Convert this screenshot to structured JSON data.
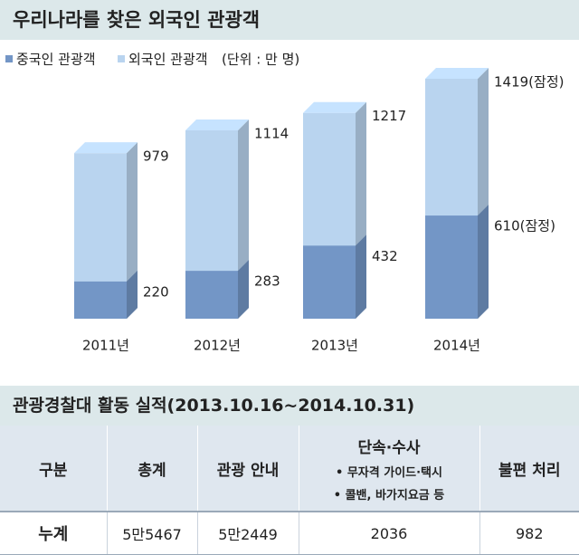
{
  "chart_data": {
    "type": "overlay-bar3d",
    "title": "우리나라를 찾은 외국인 관광객",
    "unit": "(단위 : 만 명)",
    "categories": [
      "2011년",
      "2012년",
      "2013년",
      "2014년"
    ],
    "series": [
      {
        "name": "외국인 관광객",
        "color": "#b9d4ef",
        "values": [
          979,
          1114,
          1217,
          1419
        ],
        "value_labels": [
          "979",
          "1114",
          "1217",
          "1419(잠정)"
        ]
      },
      {
        "name": "중국인 관광객",
        "color": "#7396c6",
        "values": [
          220,
          283,
          432,
          610
        ],
        "value_labels": [
          "220",
          "283",
          "432",
          "610(잠정)"
        ]
      }
    ]
  },
  "table": {
    "title": "관광경찰대 활동 실적(2013.10.16~2014.10.31)",
    "header": [
      "구분",
      "총계",
      "관광 안내",
      "단속·수사",
      "불편 처리"
    ],
    "header_notes": [
      "• 무자격 가이드·택시",
      "• 콜밴, 바가지요금 등"
    ],
    "rows": [
      [
        "누계",
        "5만5467",
        "5만2449",
        "2036",
        "982"
      ]
    ]
  }
}
